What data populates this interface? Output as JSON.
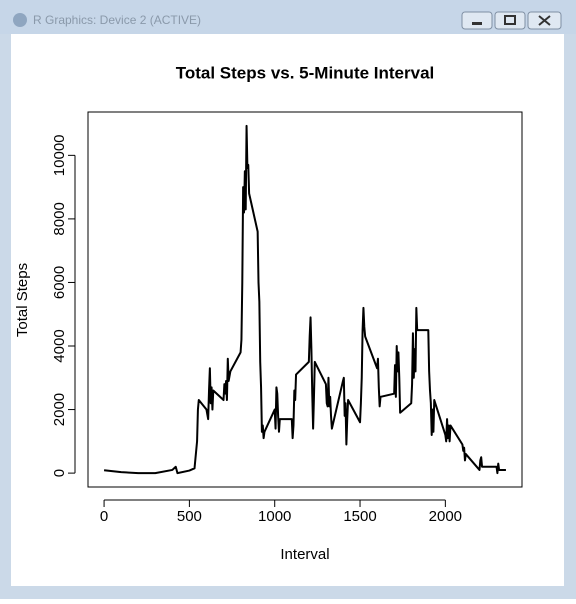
{
  "window": {
    "title": "R Graphics: Device 2 (ACTIVE)"
  },
  "chart_data": {
    "type": "line",
    "title": "Total Steps vs. 5-Minute Interval",
    "x_label": "Interval",
    "y_label": "Total Steps",
    "color": "#000000",
    "x": [
      0,
      100,
      200,
      300,
      400,
      420,
      430,
      500,
      530,
      545,
      550,
      555,
      600,
      610,
      615,
      620,
      625,
      630,
      635,
      640,
      700,
      705,
      710,
      715,
      720,
      725,
      730,
      740,
      800,
      805,
      810,
      815,
      820,
      825,
      830,
      835,
      840,
      845,
      850,
      900,
      905,
      910,
      915,
      920,
      925,
      930,
      935,
      940,
      1000,
      1005,
      1010,
      1015,
      1020,
      1025,
      1030,
      1100,
      1105,
      1110,
      1115,
      1120,
      1125,
      1200,
      1205,
      1210,
      1215,
      1220,
      1225,
      1230,
      1235,
      1300,
      1305,
      1310,
      1315,
      1320,
      1325,
      1330,
      1335,
      1400,
      1405,
      1410,
      1415,
      1420,
      1425,
      1430,
      1500,
      1505,
      1510,
      1515,
      1520,
      1525,
      1530,
      1600,
      1605,
      1610,
      1615,
      1620,
      1700,
      1705,
      1710,
      1715,
      1720,
      1725,
      1730,
      1735,
      1800,
      1805,
      1810,
      1815,
      1820,
      1825,
      1830,
      1835,
      1900,
      1905,
      1910,
      1915,
      1920,
      1925,
      1930,
      1935,
      2000,
      2005,
      2010,
      2015,
      2020,
      2025,
      2030,
      2100,
      2105,
      2110,
      2115,
      2120,
      2200,
      2205,
      2210,
      2215,
      2300,
      2305,
      2310,
      2315,
      2355
    ],
    "values": [
      91,
      30,
      0,
      0,
      100,
      200,
      0,
      80,
      150,
      1000,
      2000,
      2300,
      2000,
      1700,
      2600,
      3300,
      2200,
      2700,
      2000,
      2600,
      2300,
      2800,
      2500,
      2900,
      2300,
      3600,
      2900,
      3200,
      3800,
      4200,
      6000,
      9000,
      8200,
      9500,
      8300,
      10927,
      9600,
      9700,
      8800,
      7600,
      6000,
      5400,
      3500,
      2700,
      1300,
      1500,
      1100,
      1300,
      2000,
      1400,
      2700,
      2500,
      1800,
      1300,
      1700,
      1700,
      1100,
      1500,
      2600,
      2300,
      3100,
      3500,
      4300,
      4900,
      3900,
      2500,
      1400,
      2400,
      3500,
      2800,
      2200,
      2100,
      3000,
      2100,
      2400,
      1800,
      1400,
      2900,
      3000,
      1800,
      2200,
      900,
      1700,
      2300,
      1600,
      2200,
      3000,
      4500,
      5200,
      4600,
      4300,
      3300,
      3600,
      2700,
      2100,
      2400,
      2500,
      3400,
      2400,
      4000,
      3200,
      3800,
      3000,
      1900,
      2200,
      2800,
      4400,
      3000,
      3900,
      3200,
      5200,
      4500,
      4500,
      3200,
      2600,
      2200,
      1200,
      2000,
      1300,
      2300,
      1200,
      1000,
      1700,
      1100,
      1500,
      1000,
      1500,
      900,
      700,
      800,
      400,
      600,
      100,
      400,
      500,
      200,
      200,
      0,
      300,
      100,
      100
    ],
    "xlim": [
      -94.2,
      2449.2
    ],
    "ylim": [
      -437,
      11364
    ],
    "xticks": [
      0,
      500,
      1000,
      1500,
      2000
    ],
    "yticks": [
      0,
      2000,
      4000,
      6000,
      8000,
      10000
    ]
  }
}
